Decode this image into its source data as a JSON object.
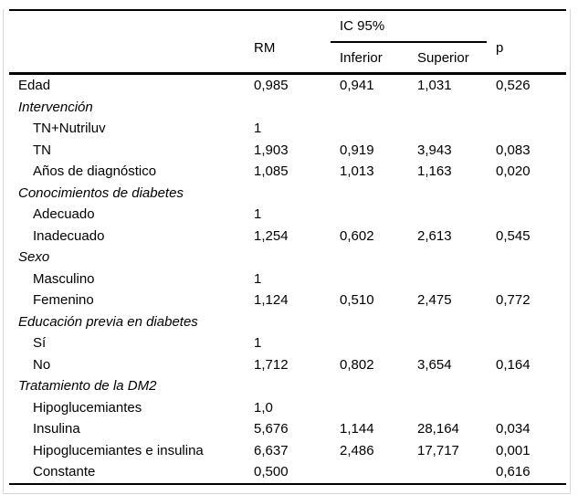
{
  "table": {
    "headers": {
      "rm": "RM",
      "ic": "IC 95%",
      "inferior": "Inferior",
      "superior": "Superior",
      "p": "p"
    },
    "rows": [
      {
        "label": "Edad",
        "style": "plain",
        "rm": "0,985",
        "inferior": "0,941",
        "superior": "1,031",
        "p": "0,526"
      },
      {
        "label": "Intervención",
        "style": "section",
        "rm": "",
        "inferior": "",
        "superior": "",
        "p": ""
      },
      {
        "label": "TN+Nutriluv",
        "style": "sub",
        "rm": "1",
        "inferior": "",
        "superior": "",
        "p": ""
      },
      {
        "label": "TN",
        "style": "sub",
        "rm": "1,903",
        "inferior": "0,919",
        "superior": "3,943",
        "p": "0,083"
      },
      {
        "label": "Años de diagnóstico",
        "style": "sub",
        "rm": "1,085",
        "inferior": "1,013",
        "superior": "1,163",
        "p": "0,020"
      },
      {
        "label": "Conocimientos de diabetes",
        "style": "section",
        "rm": "",
        "inferior": "",
        "superior": "",
        "p": ""
      },
      {
        "label": "Adecuado",
        "style": "sub",
        "rm": "1",
        "inferior": "",
        "superior": "",
        "p": ""
      },
      {
        "label": "Inadecuado",
        "style": "sub",
        "rm": "1,254",
        "inferior": "0,602",
        "superior": "2,613",
        "p": "0,545"
      },
      {
        "label": "Sexo",
        "style": "section",
        "rm": "",
        "inferior": "",
        "superior": "",
        "p": ""
      },
      {
        "label": "Masculino",
        "style": "sub",
        "rm": "1",
        "inferior": "",
        "superior": "",
        "p": ""
      },
      {
        "label": "Femenino",
        "style": "sub",
        "rm": "1,124",
        "inferior": "0,510",
        "superior": "2,475",
        "p": "0,772"
      },
      {
        "label": "Educación previa en diabetes",
        "style": "section",
        "rm": "",
        "inferior": "",
        "superior": "",
        "p": ""
      },
      {
        "label": "Sí",
        "style": "sub",
        "rm": "1",
        "inferior": "",
        "superior": "",
        "p": ""
      },
      {
        "label": "No",
        "style": "sub",
        "rm": "1,712",
        "inferior": "0,802",
        "superior": "3,654",
        "p": "0,164"
      },
      {
        "label": "Tratamiento de la DM2",
        "style": "section",
        "rm": "",
        "inferior": "",
        "superior": "",
        "p": ""
      },
      {
        "label": "Hipoglucemiantes",
        "style": "sub",
        "rm": "1,0",
        "inferior": "",
        "superior": "",
        "p": ""
      },
      {
        "label": "Insulina",
        "style": "sub",
        "rm": "5,676",
        "inferior": "1,144",
        "superior": "28,164",
        "p": "0,034"
      },
      {
        "label": "Hipoglucemiantes e insulina",
        "style": "sub",
        "rm": "6,637",
        "inferior": "2,486",
        "superior": "17,717",
        "p": "0,001"
      },
      {
        "label": "Constante",
        "style": "sub",
        "rm": "0,500",
        "inferior": "",
        "superior": "",
        "p": "0,616"
      }
    ]
  },
  "colors": {
    "text": "#000000",
    "rule": "#000000",
    "frame_border": "#d8d8d8",
    "background": "#ffffff"
  }
}
